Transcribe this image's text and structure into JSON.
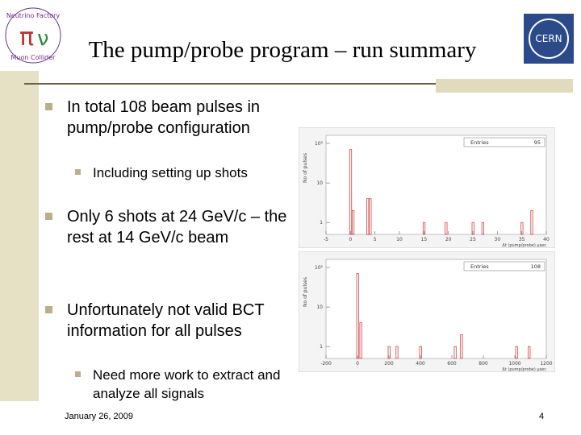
{
  "header": {
    "title": "The pump/probe program – run summary"
  },
  "logos": {
    "left": [
      "Neutrino Factory",
      "Muon Collider"
    ],
    "right": "CERN"
  },
  "bullets": [
    {
      "text": "In total 108 beam pulses in pump/probe configuration",
      "sub": [
        "Including setting up shots"
      ]
    },
    {
      "text": "Only 6 shots at 24 GeV/c – the rest at 14 GeV/c beam"
    },
    {
      "text": "Unfortunately not valid BCT information for all pulses",
      "sub": [
        "Need more work to extract and analyze all signals"
      ]
    }
  ],
  "footer": {
    "date": "January 26, 2009",
    "page": "4"
  },
  "charts": [
    {
      "type": "bar",
      "y_label": "No of pulses",
      "x_label": "Δt (pump/probe) μsec",
      "stats_label": "Entries",
      "entries": 95,
      "log_y": true,
      "color": "#d04040",
      "xlim": [
        -5,
        40
      ],
      "xticks": [
        -5,
        0,
        5,
        10,
        15,
        20,
        25,
        30,
        35,
        40
      ],
      "ylim": [
        0.5,
        160
      ],
      "yticks": [
        1,
        10,
        {
          "value": 100,
          "label": "10²"
        }
      ],
      "x": [
        0,
        0.5,
        3.5,
        4,
        15,
        19.5,
        25,
        27,
        35,
        37
      ],
      "values": [
        70,
        2,
        4,
        4,
        1,
        1,
        1,
        1,
        1,
        2
      ]
    },
    {
      "type": "bar",
      "y_label": "No of pulses",
      "x_label": "Δt (pump/probe) μsec",
      "stats_label": "Entries",
      "entries": 108,
      "log_y": true,
      "color": "#d04040",
      "xlim": [
        -200,
        1200
      ],
      "xticks": [
        -200,
        0,
        200,
        400,
        600,
        800,
        1000,
        1200
      ],
      "ylim": [
        0.5,
        160
      ],
      "yticks": [
        1,
        10,
        {
          "value": 100,
          "label": "10²"
        }
      ],
      "x": [
        0,
        20,
        200,
        250,
        400,
        620,
        660,
        1010,
        1090
      ],
      "values": [
        70,
        4,
        1,
        1,
        1,
        1,
        2,
        1,
        1
      ]
    }
  ]
}
